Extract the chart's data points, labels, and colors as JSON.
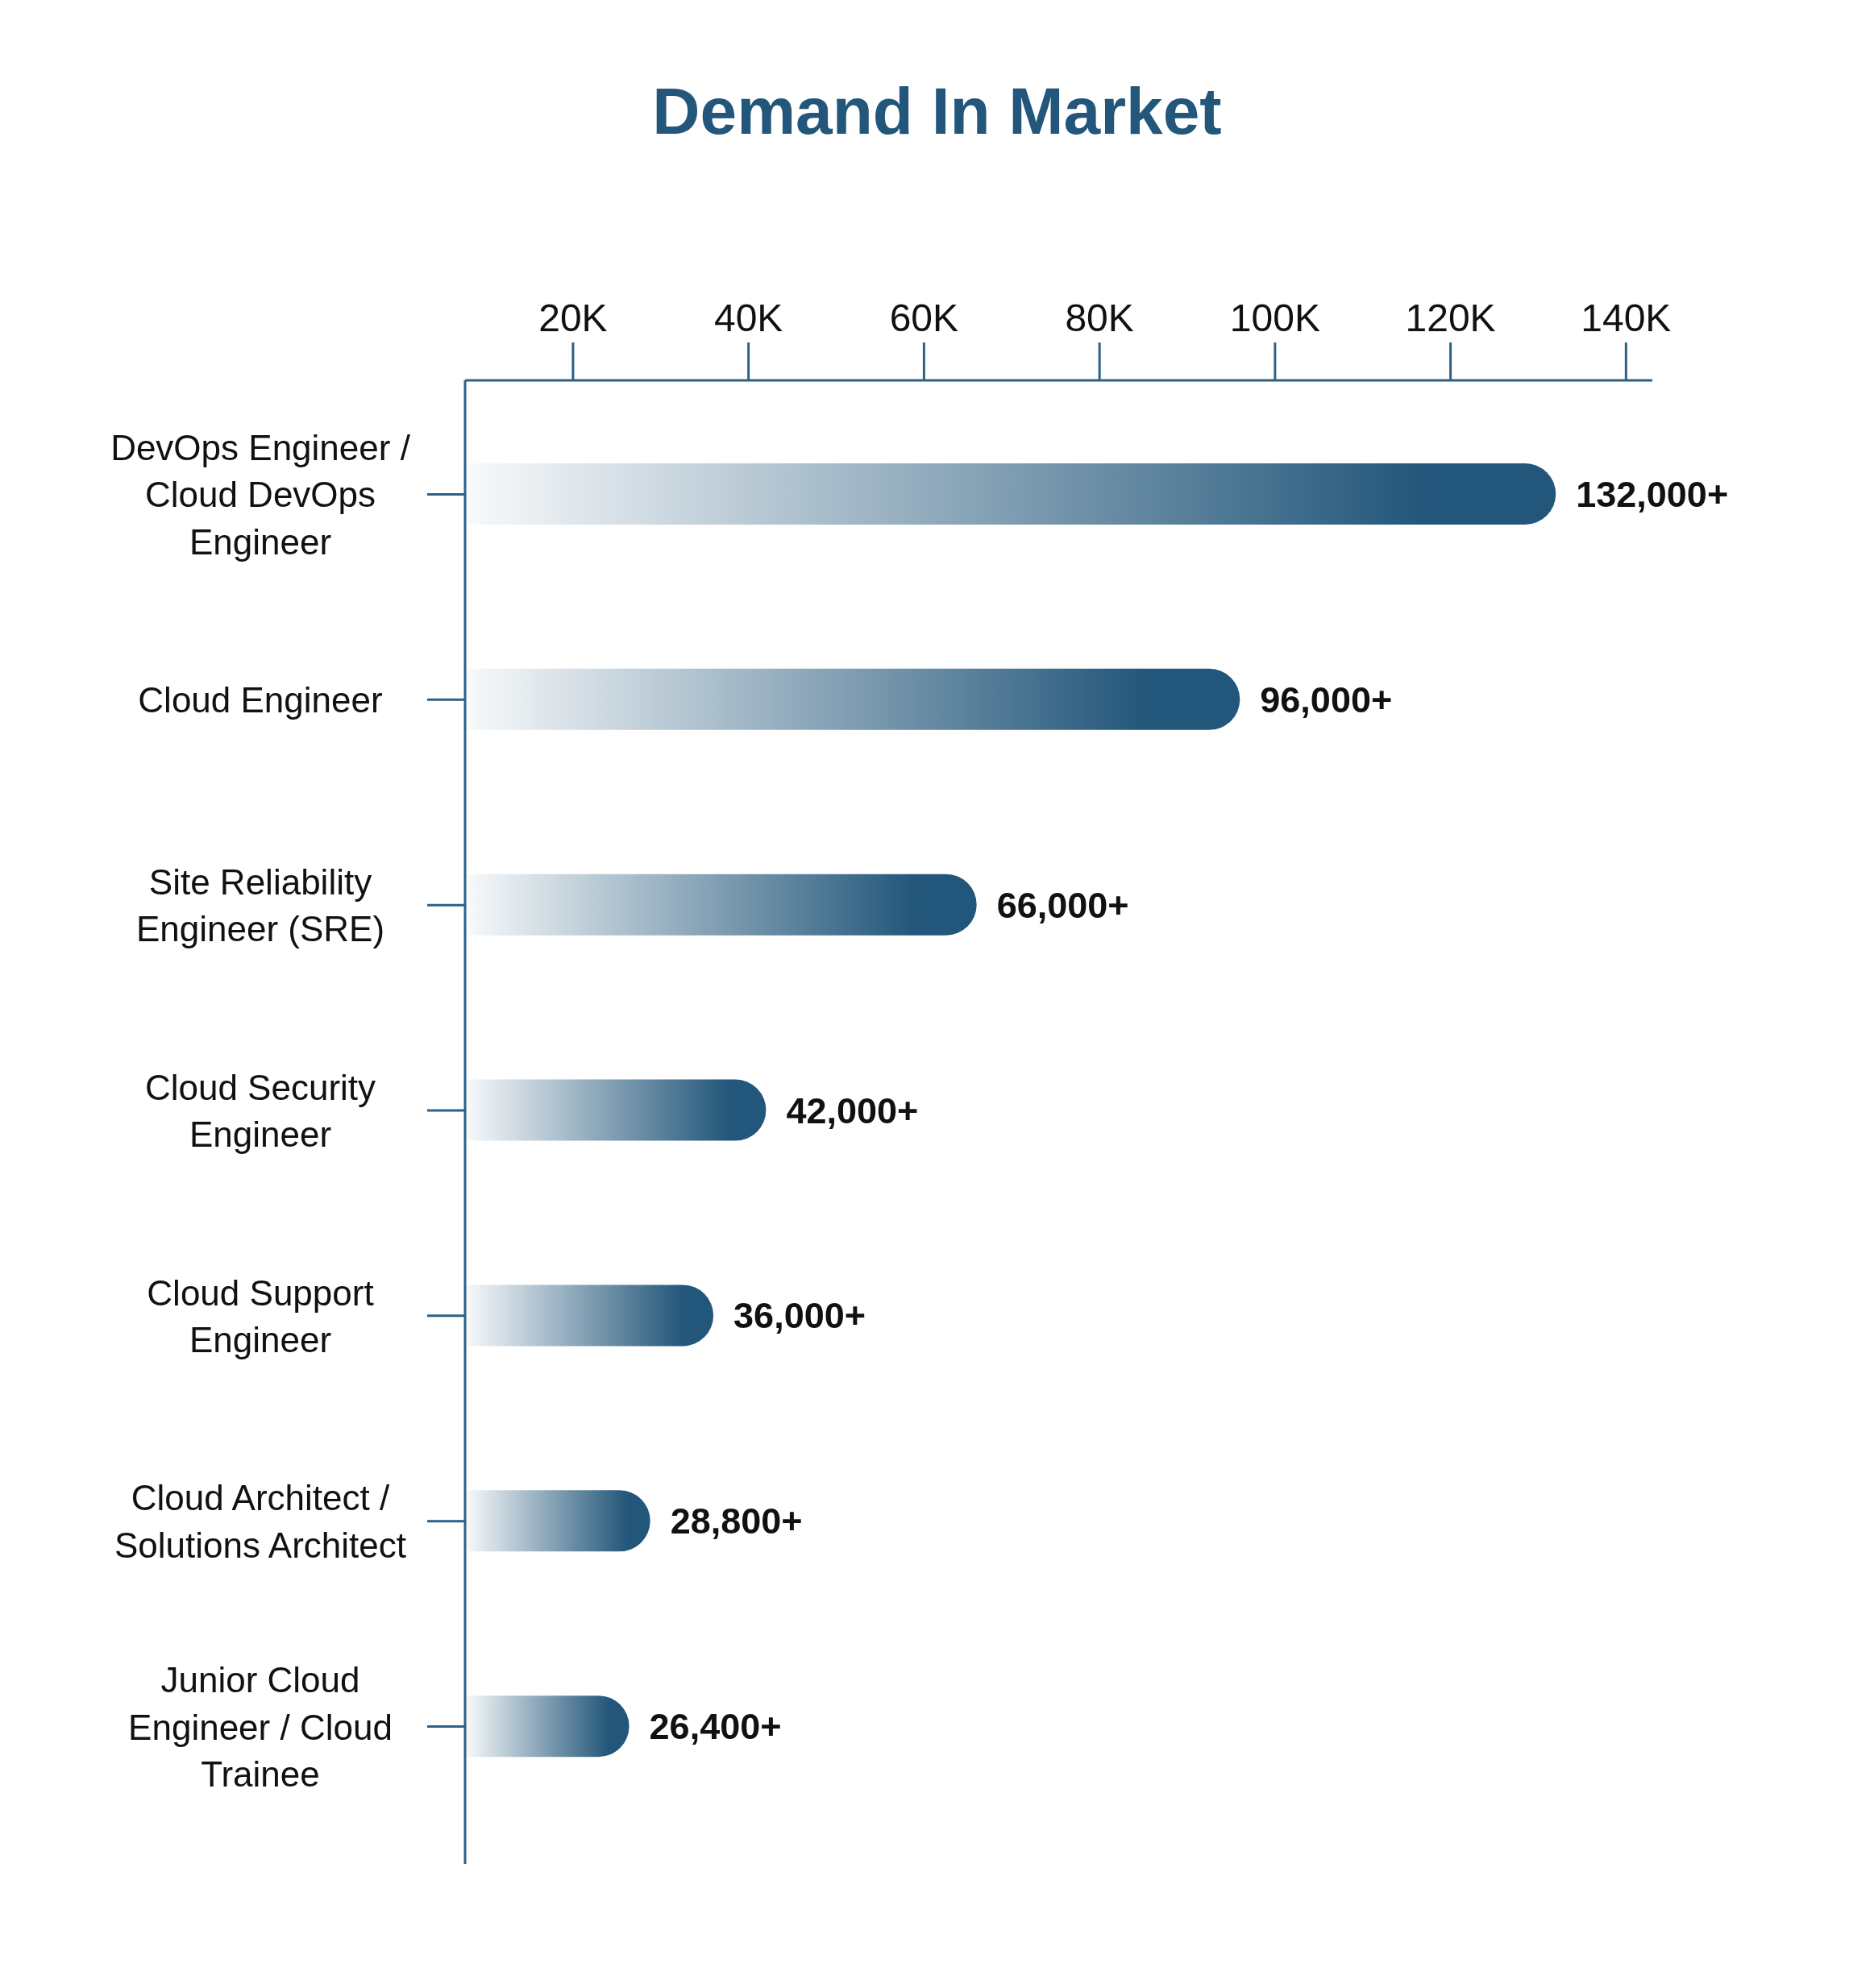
{
  "chart_data": {
    "type": "bar",
    "orientation": "horizontal",
    "title": "Demand In Market",
    "categories": [
      "DevOps Engineer / Cloud DevOps Engineer",
      "Cloud Engineer",
      "Site Reliability Engineer (SRE)",
      "Cloud Security Engineer",
      "Cloud Support Engineer",
      "Cloud Architect / Solutions Architect",
      "Junior Cloud Engineer / Cloud Trainee"
    ],
    "values": [
      132000,
      96000,
      66000,
      42000,
      36000,
      28800,
      26400
    ],
    "value_labels": [
      "132,000+",
      "96,000+",
      "66,000+",
      "42,000+",
      "36,000+",
      "28,800+",
      "26,400+"
    ],
    "color": "#22567a",
    "xlim": [
      7700,
      143000
    ],
    "xticks": [
      {
        "value": 20000,
        "label": "20K"
      },
      {
        "value": 40000,
        "label": "40K"
      },
      {
        "value": 60000,
        "label": "60K"
      },
      {
        "value": 80000,
        "label": "80K"
      },
      {
        "value": 100000,
        "label": "100K"
      },
      {
        "value": 120000,
        "label": "120K"
      },
      {
        "value": 140000,
        "label": "140K"
      }
    ]
  }
}
